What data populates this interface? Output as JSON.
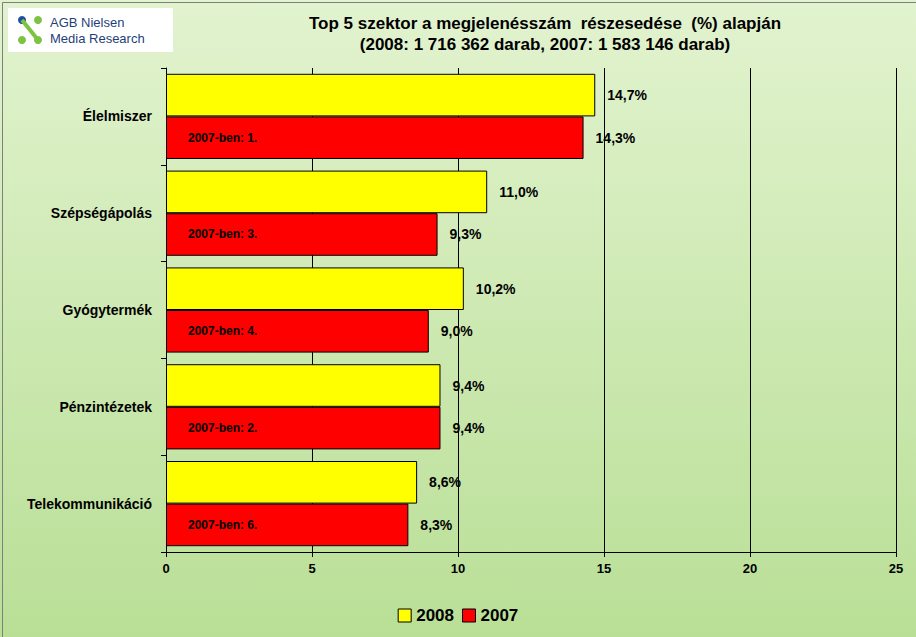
{
  "chart_data": {
    "type": "bar",
    "orientation": "horizontal",
    "title": "Top 5 szektor a megjelenésszám  részesedése  (%) alapján",
    "subtitle": "(2008: 1 716 362 darab, 2007: 1 583 146 darab)",
    "logo_text": "AGB Nielsen\nMedia Research",
    "categories": [
      "Élelmiszer",
      "Szépségápolás",
      "Gyógytermék",
      "Pénzintézetek",
      "Telekommunikáció"
    ],
    "series": [
      {
        "name": "2008",
        "color": "#ffff00",
        "values": [
          14.7,
          11.0,
          10.2,
          9.4,
          8.6
        ],
        "value_labels": [
          "14,7%",
          "11,0%",
          "10,2%",
          "9,4%",
          "8,6%"
        ]
      },
      {
        "name": "2007",
        "color": "#ff0000",
        "values": [
          14.3,
          9.3,
          9.0,
          9.4,
          8.3
        ],
        "value_labels": [
          "14,3%",
          "9,3%",
          "9,0%",
          "9,4%",
          "8,3%"
        ],
        "annotations": [
          "2007-ben: 1.",
          "2007-ben: 3.",
          "2007-ben: 4.",
          "2007-ben: 2.",
          "2007-ben: 6."
        ]
      }
    ],
    "xlim": [
      0,
      25
    ],
    "xticks": [
      0,
      5,
      10,
      15,
      20,
      25
    ],
    "grid": true,
    "legend": "bottom",
    "data_labels": true
  }
}
